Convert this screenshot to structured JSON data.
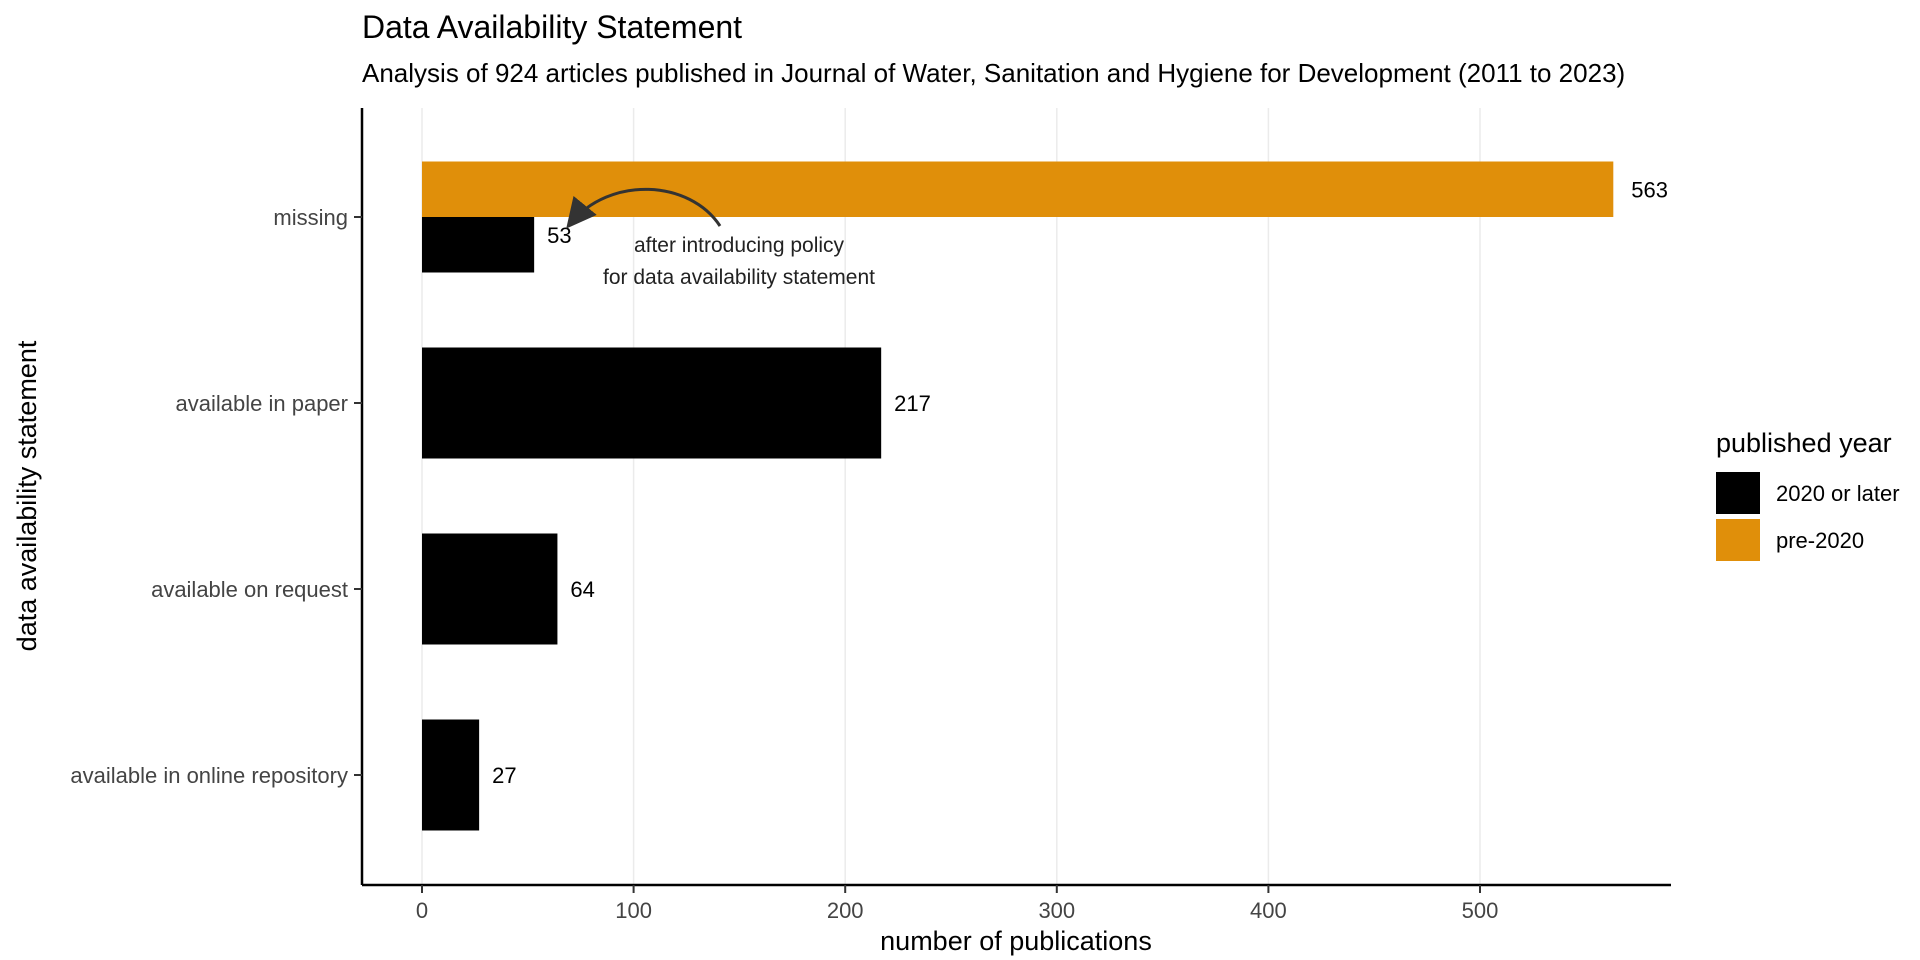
{
  "chart_data": {
    "type": "bar",
    "title": "Data Availability Statement",
    "subtitle": "Analysis of 924 articles published in Journal of Water, Sanitation and Hygiene for Development (2011 to 2023)",
    "xlabel": "number of publications",
    "ylabel": "data availability statement",
    "xlim": [
      0,
      580
    ],
    "x_ticks": [
      0,
      100,
      200,
      300,
      400,
      500
    ],
    "grid": "vertical major gridlines",
    "categories": [
      "missing",
      "available in paper",
      "available on request",
      "available in online repository"
    ],
    "series": [
      {
        "name": "2020 or later",
        "color": "#000000",
        "values": [
          53,
          217,
          64,
          27
        ]
      },
      {
        "name": "pre-2020",
        "color": "#E08F0A",
        "values": [
          563,
          null,
          null,
          null
        ]
      }
    ],
    "legend": {
      "title": "published year",
      "placement": "right",
      "entries": [
        "2020 or later",
        "pre-2020"
      ]
    },
    "annotation": {
      "lines": [
        "after introducing policy",
        "for data availability statement"
      ],
      "target": {
        "category": "missing",
        "series": "2020 or later"
      }
    }
  }
}
